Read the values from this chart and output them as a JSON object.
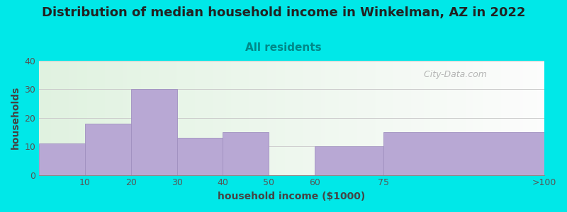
{
  "title": "Distribution of median household income in Winkelman, AZ in 2022",
  "subtitle": "All residents",
  "xlabel": "household income ($1000)",
  "ylabel": "households",
  "bar_labels": [
    "10",
    "20",
    "30",
    "40",
    "50",
    "60",
    "75",
    ">100"
  ],
  "bar_values": [
    11,
    18,
    30,
    13,
    15,
    0,
    10,
    15
  ],
  "bar_color": "#b8a8d4",
  "bar_edge_color": "#a090c0",
  "ylim": [
    0,
    40
  ],
  "yticks": [
    0,
    10,
    20,
    30,
    40
  ],
  "background_outer": "#00e8e8",
  "title_fontsize": 13,
  "subtitle_fontsize": 11,
  "subtitle_color": "#008888",
  "axis_label_fontsize": 10,
  "tick_fontsize": 9,
  "grid_color": "#cccccc",
  "watermark_text": "  City-Data.com",
  "watermark_color": "#aaaaaa"
}
